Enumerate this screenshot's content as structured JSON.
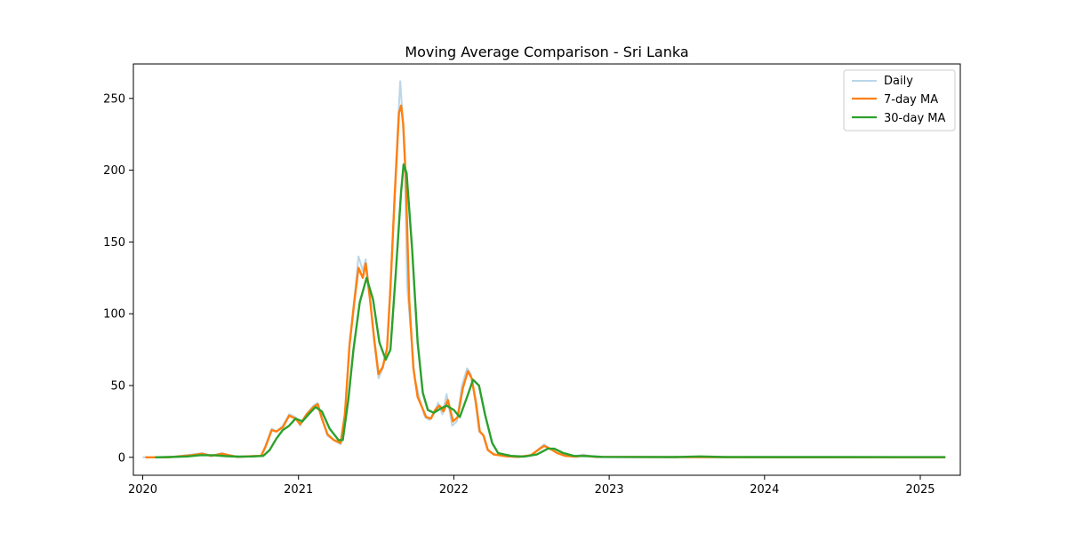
{
  "chart_data": {
    "type": "line",
    "title": "Moving Average Comparison - Sri Lanka",
    "xlabel": "",
    "ylabel": "",
    "x_ticks": [
      "2020",
      "2021",
      "2022",
      "2023",
      "2024",
      "2025"
    ],
    "y_ticks": [
      0,
      50,
      100,
      150,
      200,
      250
    ],
    "xlim": [
      "2019-12-10",
      "2025-04-05"
    ],
    "ylim": [
      -12.5,
      274
    ],
    "grid": false,
    "legend_position": "top-right",
    "series": [
      {
        "name": "Daily",
        "color": "#1f77b4",
        "opacity": 0.3,
        "points": [
          [
            "2020-01-01",
            0
          ],
          [
            "2020-03-01",
            0
          ],
          [
            "2020-04-25",
            2
          ],
          [
            "2020-05-20",
            3
          ],
          [
            "2020-06-10",
            1
          ],
          [
            "2020-07-05",
            3
          ],
          [
            "2020-08-10",
            0
          ],
          [
            "2020-09-15",
            1
          ],
          [
            "2020-10-05",
            1
          ],
          [
            "2020-10-15",
            8
          ],
          [
            "2020-10-30",
            20
          ],
          [
            "2020-11-10",
            18
          ],
          [
            "2020-11-25",
            22
          ],
          [
            "2020-12-10",
            30
          ],
          [
            "2020-12-25",
            28
          ],
          [
            "2021-01-05",
            22
          ],
          [
            "2021-01-20",
            30
          ],
          [
            "2021-02-05",
            36
          ],
          [
            "2021-02-15",
            38
          ],
          [
            "2021-02-25",
            28
          ],
          [
            "2021-03-10",
            15
          ],
          [
            "2021-03-25",
            12
          ],
          [
            "2021-04-10",
            9
          ],
          [
            "2021-04-20",
            30
          ],
          [
            "2021-05-01",
            80
          ],
          [
            "2021-05-12",
            110
          ],
          [
            "2021-05-22",
            140
          ],
          [
            "2021-06-01",
            130
          ],
          [
            "2021-06-08",
            138
          ],
          [
            "2021-06-18",
            112
          ],
          [
            "2021-06-28",
            80
          ],
          [
            "2021-07-08",
            55
          ],
          [
            "2021-07-18",
            62
          ],
          [
            "2021-07-28",
            75
          ],
          [
            "2021-08-05",
            120
          ],
          [
            "2021-08-15",
            185
          ],
          [
            "2021-08-25",
            245
          ],
          [
            "2021-08-28",
            262
          ],
          [
            "2021-09-02",
            240
          ],
          [
            "2021-09-08",
            205
          ],
          [
            "2021-09-13",
            120
          ],
          [
            "2021-09-20",
            95
          ],
          [
            "2021-10-01",
            55
          ],
          [
            "2021-10-15",
            38
          ],
          [
            "2021-10-25",
            28
          ],
          [
            "2021-11-05",
            26
          ],
          [
            "2021-11-15",
            30
          ],
          [
            "2021-11-25",
            38
          ],
          [
            "2021-12-05",
            30
          ],
          [
            "2021-12-15",
            44
          ],
          [
            "2021-12-28",
            22
          ],
          [
            "2022-01-08",
            25
          ],
          [
            "2022-01-20",
            50
          ],
          [
            "2022-02-01",
            62
          ],
          [
            "2022-02-10",
            58
          ],
          [
            "2022-02-20",
            40
          ],
          [
            "2022-03-01",
            18
          ],
          [
            "2022-03-10",
            16
          ],
          [
            "2022-03-20",
            6
          ],
          [
            "2022-04-05",
            2
          ],
          [
            "2022-05-01",
            1
          ],
          [
            "2022-06-01",
            0
          ],
          [
            "2022-07-01",
            1
          ],
          [
            "2022-07-20",
            6
          ],
          [
            "2022-08-01",
            9
          ],
          [
            "2022-08-15",
            6
          ],
          [
            "2022-09-01",
            3
          ],
          [
            "2022-09-20",
            1
          ],
          [
            "2022-10-15",
            1
          ],
          [
            "2022-11-01",
            2
          ],
          [
            "2022-12-01",
            0
          ],
          [
            "2023-06-01",
            0
          ],
          [
            "2024-06-01",
            0
          ],
          [
            "2025-03-01",
            0
          ]
        ]
      },
      {
        "name": "7-day MA",
        "color": "#ff7f0e",
        "opacity": 1,
        "points": [
          [
            "2020-01-07",
            0
          ],
          [
            "2020-03-01",
            0
          ],
          [
            "2020-04-25",
            1.5
          ],
          [
            "2020-05-20",
            2.5
          ],
          [
            "2020-06-10",
            1
          ],
          [
            "2020-07-05",
            2.5
          ],
          [
            "2020-08-10",
            0.3
          ],
          [
            "2020-09-15",
            0.8
          ],
          [
            "2020-10-05",
            1
          ],
          [
            "2020-10-15",
            7
          ],
          [
            "2020-10-30",
            19
          ],
          [
            "2020-11-10",
            18
          ],
          [
            "2020-11-25",
            21
          ],
          [
            "2020-12-10",
            29
          ],
          [
            "2020-12-25",
            27
          ],
          [
            "2021-01-05",
            23
          ],
          [
            "2021-01-20",
            30
          ],
          [
            "2021-02-05",
            35
          ],
          [
            "2021-02-15",
            37
          ],
          [
            "2021-02-25",
            27
          ],
          [
            "2021-03-10",
            16
          ],
          [
            "2021-03-25",
            12
          ],
          [
            "2021-04-10",
            10
          ],
          [
            "2021-04-20",
            30
          ],
          [
            "2021-05-01",
            78
          ],
          [
            "2021-05-12",
            108
          ],
          [
            "2021-05-22",
            132
          ],
          [
            "2021-06-01",
            125
          ],
          [
            "2021-06-08",
            135
          ],
          [
            "2021-06-18",
            110
          ],
          [
            "2021-06-28",
            82
          ],
          [
            "2021-07-08",
            58
          ],
          [
            "2021-07-18",
            63
          ],
          [
            "2021-07-28",
            76
          ],
          [
            "2021-08-05",
            118
          ],
          [
            "2021-08-15",
            182
          ],
          [
            "2021-08-25",
            240
          ],
          [
            "2021-08-30",
            245
          ],
          [
            "2021-09-04",
            232
          ],
          [
            "2021-09-10",
            195
          ],
          [
            "2021-09-18",
            110
          ],
          [
            "2021-09-28",
            62
          ],
          [
            "2021-10-08",
            42
          ],
          [
            "2021-10-18",
            35
          ],
          [
            "2021-10-28",
            28
          ],
          [
            "2021-11-08",
            27
          ],
          [
            "2021-11-18",
            33
          ],
          [
            "2021-11-28",
            36
          ],
          [
            "2021-12-08",
            32
          ],
          [
            "2021-12-18",
            40
          ],
          [
            "2021-12-30",
            25
          ],
          [
            "2022-01-10",
            28
          ],
          [
            "2022-01-22",
            48
          ],
          [
            "2022-02-03",
            60
          ],
          [
            "2022-02-12",
            55
          ],
          [
            "2022-02-22",
            38
          ],
          [
            "2022-03-03",
            18
          ],
          [
            "2022-03-12",
            15
          ],
          [
            "2022-03-22",
            5
          ],
          [
            "2022-04-05",
            2
          ],
          [
            "2022-05-01",
            0.8
          ],
          [
            "2022-06-01",
            0.3
          ],
          [
            "2022-07-01",
            1.5
          ],
          [
            "2022-07-20",
            5.5
          ],
          [
            "2022-08-01",
            8
          ],
          [
            "2022-08-15",
            6
          ],
          [
            "2022-09-01",
            3
          ],
          [
            "2022-09-20",
            1
          ],
          [
            "2022-10-15",
            0.5
          ],
          [
            "2022-11-01",
            1.2
          ],
          [
            "2022-12-01",
            0.3
          ],
          [
            "2023-06-01",
            0.1
          ],
          [
            "2024-06-01",
            0
          ],
          [
            "2025-03-01",
            0
          ]
        ]
      },
      {
        "name": "30-day MA",
        "color": "#2ca02c",
        "opacity": 1,
        "points": [
          [
            "2020-01-30",
            0
          ],
          [
            "2020-03-01",
            0.2
          ],
          [
            "2020-04-15",
            0.6
          ],
          [
            "2020-05-15",
            1.5
          ],
          [
            "2020-06-15",
            1.5
          ],
          [
            "2020-07-15",
            0.8
          ],
          [
            "2020-08-15",
            0.5
          ],
          [
            "2020-09-15",
            0.6
          ],
          [
            "2020-10-10",
            1
          ],
          [
            "2020-10-25",
            5
          ],
          [
            "2020-11-10",
            13
          ],
          [
            "2020-11-25",
            19
          ],
          [
            "2020-12-10",
            22
          ],
          [
            "2020-12-25",
            27
          ],
          [
            "2021-01-10",
            25
          ],
          [
            "2021-01-25",
            30
          ],
          [
            "2021-02-10",
            35
          ],
          [
            "2021-02-25",
            32
          ],
          [
            "2021-03-15",
            20
          ],
          [
            "2021-04-05",
            12
          ],
          [
            "2021-04-15",
            12
          ],
          [
            "2021-04-28",
            40
          ],
          [
            "2021-05-10",
            75
          ],
          [
            "2021-05-25",
            108
          ],
          [
            "2021-06-10",
            125
          ],
          [
            "2021-06-25",
            110
          ],
          [
            "2021-07-10",
            80
          ],
          [
            "2021-07-25",
            68
          ],
          [
            "2021-08-05",
            75
          ],
          [
            "2021-08-18",
            130
          ],
          [
            "2021-08-30",
            185
          ],
          [
            "2021-09-05",
            204
          ],
          [
            "2021-09-12",
            198
          ],
          [
            "2021-09-25",
            145
          ],
          [
            "2021-10-08",
            80
          ],
          [
            "2021-10-20",
            45
          ],
          [
            "2021-11-01",
            33
          ],
          [
            "2021-11-15",
            31
          ],
          [
            "2021-12-01",
            34
          ],
          [
            "2021-12-15",
            36
          ],
          [
            "2022-01-01",
            33
          ],
          [
            "2022-01-15",
            28
          ],
          [
            "2022-02-01",
            42
          ],
          [
            "2022-02-15",
            54
          ],
          [
            "2022-03-01",
            50
          ],
          [
            "2022-03-15",
            30
          ],
          [
            "2022-04-01",
            10
          ],
          [
            "2022-04-15",
            3
          ],
          [
            "2022-05-15",
            1
          ],
          [
            "2022-06-15",
            0.5
          ],
          [
            "2022-07-15",
            2
          ],
          [
            "2022-08-10",
            6
          ],
          [
            "2022-08-25",
            6
          ],
          [
            "2022-09-15",
            3
          ],
          [
            "2022-10-10",
            1
          ],
          [
            "2022-11-15",
            0.8
          ],
          [
            "2022-12-15",
            0.3
          ],
          [
            "2023-06-01",
            0.2
          ],
          [
            "2023-08-01",
            0.6
          ],
          [
            "2023-10-01",
            0.2
          ],
          [
            "2024-06-01",
            0.2
          ],
          [
            "2025-03-01",
            0.1
          ]
        ]
      }
    ]
  }
}
